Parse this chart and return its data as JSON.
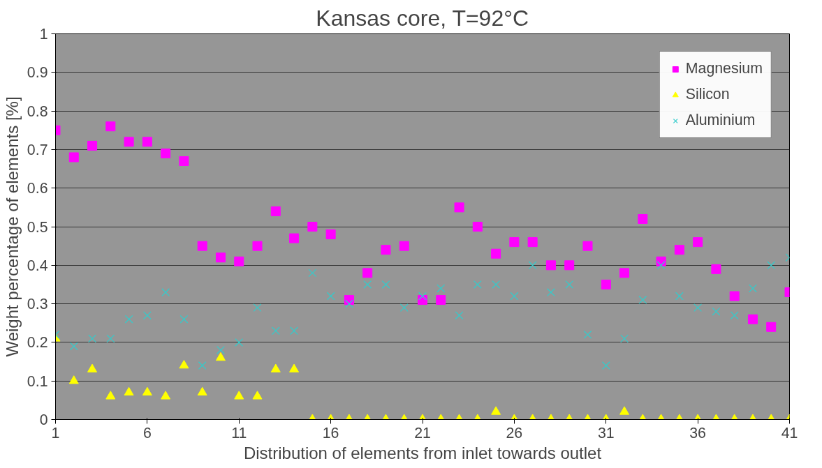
{
  "chart_data": {
    "type": "scatter",
    "title": "Kansas core, T=92°C",
    "xlabel": "Distribution of elements from inlet towards outlet",
    "ylabel": "Weight percentage of elements [%]",
    "x": [
      1,
      2,
      3,
      4,
      5,
      6,
      7,
      8,
      9,
      10,
      11,
      12,
      13,
      14,
      15,
      16,
      17,
      18,
      19,
      20,
      21,
      22,
      23,
      24,
      25,
      26,
      27,
      28,
      29,
      30,
      31,
      32,
      33,
      34,
      35,
      36,
      37,
      38,
      39,
      40,
      41
    ],
    "series": [
      {
        "name": "Magnesium",
        "color": "#ff00ff",
        "marker": "square",
        "values": [
          0.75,
          0.68,
          0.71,
          0.76,
          0.72,
          0.72,
          0.69,
          0.67,
          0.45,
          0.42,
          0.41,
          0.45,
          0.54,
          0.47,
          0.5,
          0.48,
          0.31,
          0.38,
          0.44,
          0.45,
          0.31,
          0.31,
          0.55,
          0.5,
          0.43,
          0.46,
          0.46,
          0.4,
          0.4,
          0.45,
          0.35,
          0.38,
          0.52,
          0.41,
          0.44,
          0.46,
          0.39,
          0.32,
          0.26,
          0.24,
          0.33
        ]
      },
      {
        "name": "Silicon",
        "color": "#ffff00",
        "marker": "triangle",
        "values": [
          0.21,
          0.1,
          0.13,
          0.06,
          0.07,
          0.07,
          0.06,
          0.14,
          0.07,
          0.16,
          0.06,
          0.06,
          0.13,
          0.13,
          0,
          0,
          0,
          0,
          0,
          0,
          0,
          0,
          0,
          0,
          0.02,
          0,
          0,
          0,
          0,
          0,
          0,
          0.02,
          0,
          0,
          0,
          0,
          0,
          0,
          0,
          0,
          0
        ]
      },
      {
        "name": "Aluminium",
        "color": "#33cccc",
        "marker": "cross",
        "values": [
          0.22,
          0.19,
          0.21,
          0.21,
          0.26,
          0.27,
          0.33,
          0.26,
          0.14,
          0.18,
          0.2,
          0.29,
          0.23,
          0.23,
          0.38,
          0.32,
          0.3,
          0.35,
          0.35,
          0.29,
          0.32,
          0.34,
          0.27,
          0.35,
          0.35,
          0.32,
          0.4,
          0.33,
          0.35,
          0.22,
          0.14,
          0.21,
          0.31,
          0.4,
          0.32,
          0.29,
          0.28,
          0.27,
          0.34,
          0.4,
          0.42
        ]
      }
    ],
    "xlim": [
      1,
      41
    ],
    "xticks": [
      1,
      6,
      11,
      16,
      21,
      26,
      31,
      36,
      41
    ],
    "ylim": [
      0,
      1
    ],
    "yticks": [
      0,
      0.1,
      0.2,
      0.3,
      0.4,
      0.5,
      0.6,
      0.7,
      0.8,
      0.9,
      1
    ],
    "grid": "y",
    "legend": "top right"
  }
}
